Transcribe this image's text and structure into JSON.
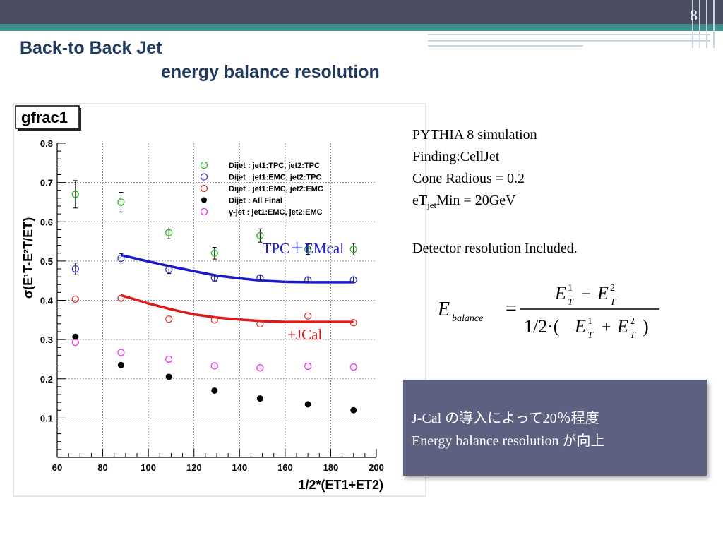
{
  "slide": {
    "page_number": "8",
    "title_line1": "Back-to Back Jet",
    "title_line2": "energy balance resolution"
  },
  "info": {
    "line1": "PYTHIA 8  simulation",
    "line2": "Finding:CellJet",
    "line3": "Cone Radious = 0.2",
    "line4_pre": "eT",
    "line4_sub": "jet",
    "line4_post": "Min = 20GeV",
    "line5": "Detector resolution Included."
  },
  "formula": {
    "lhs": "E",
    "lhs_sub": "balance",
    "equals": "=",
    "numerator": "E¹T − E²T",
    "denominator": "1/2·(E¹T + E²T)"
  },
  "callout": {
    "line1": "J-Cal の導入によって20％程度",
    "line2": "Energy balance resolution が向上"
  },
  "chart_data": {
    "type": "scatter",
    "title": "gfrac1",
    "xlabel": "1/2*(ET1+ET2)",
    "ylabel": "σ(E¹T-E²T/ET)",
    "xlim": [
      60,
      200
    ],
    "ylim": [
      0,
      0.8
    ],
    "x_ticks": [
      60,
      80,
      100,
      120,
      140,
      160,
      180,
      200
    ],
    "y_ticks": [
      0.1,
      0.2,
      0.3,
      0.4,
      0.5,
      0.6,
      0.7,
      0.8
    ],
    "grid": true,
    "legend_placement": "top-right",
    "series": [
      {
        "name": "Dijet : jet1:TPC, jet2:TPC",
        "color": "#22bb22",
        "marker": "open-circle",
        "x": [
          68,
          88,
          109,
          129,
          149,
          170,
          190
        ],
        "y": [
          0.67,
          0.65,
          0.572,
          0.52,
          0.565,
          0.53,
          0.53
        ],
        "err": [
          0.035,
          0.025,
          0.015,
          0.015,
          0.017,
          0.013,
          0.015
        ]
      },
      {
        "name": "Dijet : jet1:EMC, jet2:TPC",
        "color": "#3333cc",
        "marker": "open-circle",
        "x": [
          68,
          88,
          109,
          129,
          149,
          170,
          190
        ],
        "y": [
          0.48,
          0.507,
          0.478,
          0.457,
          0.457,
          0.452,
          0.452
        ],
        "err": [
          0.015,
          0.012,
          0.01,
          0.008,
          0.007,
          0.007,
          0.007
        ]
      },
      {
        "name": "Dijet : jet1:EMC, jet2:EMC",
        "color": "#dd3333",
        "marker": "open-circle",
        "x": [
          68,
          88,
          109,
          129,
          149,
          170,
          190
        ],
        "y": [
          0.403,
          0.405,
          0.352,
          0.35,
          0.34,
          0.36,
          0.343
        ],
        "err": [
          0,
          0,
          0,
          0,
          0,
          0,
          0
        ]
      },
      {
        "name": "Dijet : All Final",
        "color": "#000000",
        "marker": "filled-circle",
        "x": [
          68,
          88,
          109,
          129,
          149,
          170,
          190
        ],
        "y": [
          0.307,
          0.235,
          0.205,
          0.17,
          0.15,
          0.135,
          0.12
        ],
        "err": [
          0,
          0,
          0,
          0,
          0,
          0,
          0
        ]
      },
      {
        "name": "γ-jet : jet1:EMC, jet2:EMC",
        "color": "#ee33ee",
        "marker": "open-circle",
        "x": [
          68,
          88,
          109,
          129,
          149,
          170,
          190
        ],
        "y": [
          0.293,
          0.267,
          0.25,
          0.233,
          0.228,
          0.232,
          0.23
        ],
        "err": [
          0,
          0,
          0,
          0,
          0,
          0,
          0
        ]
      }
    ],
    "fit_curves": [
      {
        "color": "#1a1acc",
        "x": [
          88,
          100,
          110,
          120,
          130,
          140,
          150,
          160,
          170,
          180,
          190
        ],
        "y": [
          0.515,
          0.499,
          0.486,
          0.474,
          0.463,
          0.456,
          0.45,
          0.447,
          0.446,
          0.446,
          0.446
        ]
      },
      {
        "color": "#dd1a1a",
        "x": [
          88,
          100,
          110,
          120,
          130,
          140,
          150,
          160,
          170,
          180,
          190
        ],
        "y": [
          0.413,
          0.392,
          0.377,
          0.364,
          0.356,
          0.351,
          0.347,
          0.345,
          0.345,
          0.345,
          0.345
        ]
      }
    ],
    "annotations": [
      {
        "text": "TPC＋EMcal",
        "color": "#1a1acc",
        "x": 150,
        "y": 0.52
      },
      {
        "text": "+JCal",
        "color": "#dd1a1a",
        "x": 161,
        "y": 0.3
      }
    ]
  }
}
